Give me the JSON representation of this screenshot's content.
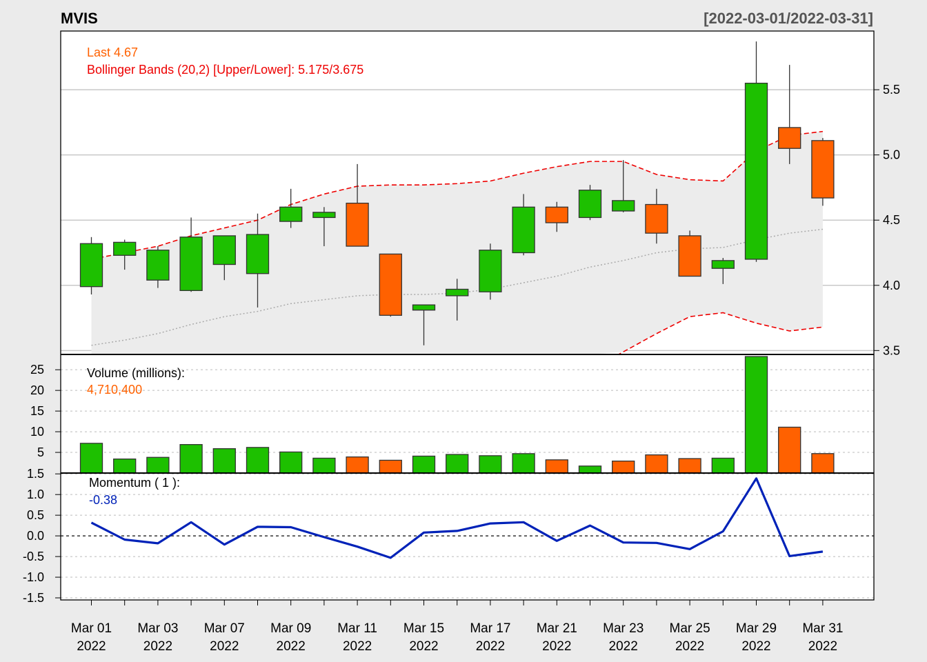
{
  "header": {
    "symbol": "MVIS",
    "date_range": "[2022-03-01/2022-03-31]"
  },
  "colors": {
    "up": "#1dc000",
    "down": "#ff6100",
    "band": "#ee0000",
    "ma": "#aaaaaa",
    "momentum": "#0022b8",
    "label_orange": "#ff6100",
    "label_red": "#ee0000",
    "label_blue": "#0022b8"
  },
  "legend": {
    "last": "Last 4.67",
    "bbands": "Bollinger Bands (20,2) [Upper/Lower]: 5.175/3.675",
    "volume_title": "Volume (millions):",
    "volume_last": "4,710,400",
    "momentum_title": "Momentum ( 1 ):",
    "momentum_last": "-0.38"
  },
  "chart_data": [
    {
      "type": "candlestick",
      "name": "price",
      "x": [
        "Mar 01",
        "Mar 02",
        "Mar 03",
        "Mar 04",
        "Mar 07",
        "Mar 08",
        "Mar 09",
        "Mar 10",
        "Mar 11",
        "Mar 14",
        "Mar 15",
        "Mar 16",
        "Mar 17",
        "Mar 18",
        "Mar 21",
        "Mar 22",
        "Mar 23",
        "Mar 24",
        "Mar 25",
        "Mar 28",
        "Mar 29",
        "Mar 30",
        "Mar 31"
      ],
      "open": [
        3.99,
        4.23,
        4.04,
        3.96,
        4.16,
        4.09,
        4.49,
        4.52,
        4.63,
        4.24,
        3.81,
        3.92,
        3.95,
        4.25,
        4.6,
        4.52,
        4.57,
        4.62,
        4.38,
        4.13,
        4.2,
        5.21,
        5.11
      ],
      "high": [
        4.37,
        4.35,
        4.3,
        4.52,
        4.38,
        4.55,
        4.74,
        4.6,
        4.93,
        4.24,
        3.85,
        4.05,
        4.32,
        4.7,
        4.64,
        4.77,
        4.96,
        4.74,
        4.42,
        4.21,
        5.87,
        5.69,
        5.13
      ],
      "low": [
        3.93,
        4.12,
        3.98,
        3.95,
        4.04,
        3.83,
        4.44,
        4.3,
        4.3,
        3.76,
        3.54,
        3.73,
        3.89,
        4.23,
        4.41,
        4.5,
        4.56,
        4.32,
        4.07,
        4.01,
        4.18,
        4.93,
        4.61
      ],
      "close": [
        4.32,
        4.33,
        4.27,
        4.37,
        4.38,
        4.39,
        4.6,
        4.56,
        4.3,
        3.77,
        3.85,
        3.97,
        4.27,
        4.6,
        4.48,
        4.73,
        4.65,
        4.4,
        4.07,
        4.19,
        5.55,
        5.05,
        4.67
      ],
      "bb_upper": [
        4.2,
        4.25,
        4.3,
        4.38,
        4.44,
        4.5,
        4.62,
        4.7,
        4.76,
        4.77,
        4.77,
        4.78,
        4.8,
        4.86,
        4.91,
        4.95,
        4.95,
        4.85,
        4.81,
        4.8,
        5.03,
        5.15,
        5.18
      ],
      "bb_lower": [
        null,
        null,
        null,
        null,
        null,
        null,
        null,
        null,
        null,
        null,
        null,
        null,
        null,
        null,
        null,
        null,
        3.49,
        3.63,
        3.76,
        3.79,
        3.71,
        3.65,
        3.68
      ],
      "bb_middle": [
        3.54,
        3.58,
        3.63,
        3.7,
        3.76,
        3.8,
        3.86,
        3.89,
        3.92,
        3.93,
        3.93,
        3.94,
        3.97,
        4.02,
        4.07,
        4.14,
        4.19,
        4.25,
        4.28,
        4.29,
        4.35,
        4.4,
        4.43
      ],
      "ylim": [
        3.47,
        5.95
      ],
      "yticks": [
        3.5,
        4.0,
        4.5,
        5.0,
        5.5
      ],
      "ytick_labels": [
        "3.5",
        "4.0",
        "4.5",
        "5.0",
        "5.5"
      ],
      "grid": true
    },
    {
      "type": "bar",
      "name": "volume",
      "unit": "millions",
      "values": [
        7.2,
        3.4,
        3.8,
        6.9,
        5.9,
        6.2,
        5.1,
        3.6,
        3.9,
        3.1,
        4.1,
        4.5,
        4.2,
        4.7,
        3.2,
        1.7,
        2.9,
        4.4,
        3.5,
        3.6,
        28.2,
        11.1,
        4.71
      ],
      "up": [
        true,
        true,
        true,
        true,
        true,
        true,
        true,
        true,
        false,
        false,
        true,
        true,
        true,
        true,
        false,
        true,
        false,
        false,
        false,
        true,
        true,
        false,
        false
      ],
      "ylim": [
        0,
        28.7
      ],
      "yticks": [
        5,
        10,
        15,
        20,
        25
      ],
      "ytick_labels": [
        "5",
        "10",
        "15",
        "20",
        "25"
      ]
    },
    {
      "type": "line",
      "name": "momentum",
      "values": [
        0.32,
        -0.09,
        -0.18,
        0.33,
        -0.21,
        0.22,
        0.21,
        -0.03,
        -0.26,
        -0.53,
        0.08,
        0.12,
        0.3,
        0.33,
        -0.12,
        0.25,
        -0.16,
        -0.17,
        -0.32,
        0.11,
        1.39,
        -0.49,
        -0.38
      ],
      "ylim": [
        -1.55,
        1.52
      ],
      "yticks": [
        -1.5,
        -1.0,
        -0.5,
        0.0,
        0.5,
        1.0,
        1.5
      ],
      "ytick_labels": [
        "-1.5",
        "-1.0",
        "-0.5",
        "0.0",
        "0.5",
        "1.0",
        "1.5"
      ],
      "zero_line": true
    }
  ],
  "x_axis": {
    "tick_index": [
      0,
      1,
      2,
      3,
      4,
      5,
      6,
      7,
      8,
      9,
      10,
      11,
      12,
      13,
      14,
      15,
      16,
      17,
      18,
      19,
      20,
      21,
      22
    ],
    "labels": [
      {
        "index": 0,
        "month_day": "Mar 01",
        "year": "2022"
      },
      {
        "index": 2,
        "month_day": "Mar 03",
        "year": "2022"
      },
      {
        "index": 4,
        "month_day": "Mar 07",
        "year": "2022"
      },
      {
        "index": 6,
        "month_day": "Mar 09",
        "year": "2022"
      },
      {
        "index": 8,
        "month_day": "Mar 11",
        "year": "2022"
      },
      {
        "index": 10,
        "month_day": "Mar 15",
        "year": "2022"
      },
      {
        "index": 12,
        "month_day": "Mar 17",
        "year": "2022"
      },
      {
        "index": 14,
        "month_day": "Mar 21",
        "year": "2022"
      },
      {
        "index": 16,
        "month_day": "Mar 23",
        "year": "2022"
      },
      {
        "index": 18,
        "month_day": "Mar 25",
        "year": "2022"
      },
      {
        "index": 20,
        "month_day": "Mar 29",
        "year": "2022"
      },
      {
        "index": 22,
        "month_day": "Mar 31",
        "year": "2022"
      }
    ]
  }
}
